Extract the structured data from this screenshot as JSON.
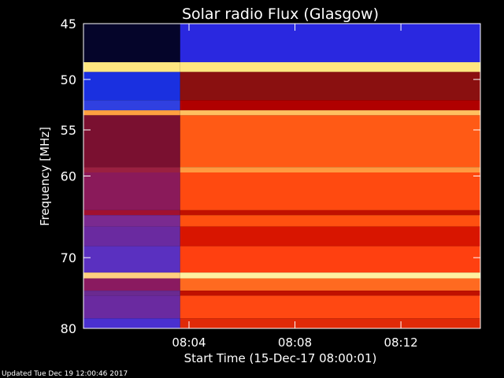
{
  "chart_data": {
    "type": "heatmap",
    "title": "Solar radio Flux (Glasgow)",
    "ylabel": "Frequency [MHz]",
    "xlabel": "Start Time (15-Dec-17 08:00:01)",
    "footer": "Updated Tue Dec 19 12:00:46 2017",
    "y_scale": "log",
    "ylim": [
      45,
      80
    ],
    "y_ticks": [
      45,
      50,
      55,
      60,
      70,
      80
    ],
    "y_tick_labels": [
      "45",
      "50",
      "55",
      "60",
      "70",
      "80"
    ],
    "x_start": "08:00:01",
    "x_end": "08:15:00",
    "x_ticks": [
      "08:04",
      "08:08",
      "08:12"
    ],
    "x_tick_labels": [
      "08:04",
      "08:08",
      "08:12"
    ],
    "transition_time": "08:03:40",
    "colors": {
      "background": "#000000",
      "pre_low_freq": "#2a2ad0",
      "pre_high_freq": "#6a2a8a",
      "post_main": "#ff4a10",
      "post_dark": "#b00000",
      "post_bright": "#ff8a30",
      "line_hot": "#fff5c0"
    },
    "bands": [
      {
        "range": [
          45.0,
          48.4
        ],
        "pre": "#05052a",
        "post": "#2a28e0"
      },
      {
        "range": [
          48.4,
          49.3
        ],
        "pre": "#ffe680",
        "post": "#ffe680"
      },
      {
        "range": [
          49.3,
          52.0
        ],
        "pre": "#1a30e0",
        "post": "#8a1010"
      },
      {
        "range": [
          52.0,
          53.0
        ],
        "pre": "#3040e0",
        "post": "#b00000"
      },
      {
        "range": [
          53.0,
          53.5
        ],
        "pre": "#ffa040",
        "post": "#ffc060"
      },
      {
        "range": [
          53.5,
          59.0
        ],
        "pre": "#7a1030",
        "post": "#ff5a15"
      },
      {
        "range": [
          59.0,
          59.6
        ],
        "pre": "#9a2040",
        "post": "#ff9a40"
      },
      {
        "range": [
          59.6,
          64.0
        ],
        "pre": "#8a1a5a",
        "post": "#ff4a10"
      },
      {
        "range": [
          64.0,
          64.6
        ],
        "pre": "#a01030",
        "post": "#c01000"
      },
      {
        "range": [
          64.6,
          66.0
        ],
        "pre": "#7a2a90",
        "post": "#ff5010"
      },
      {
        "range": [
          66.0,
          68.5
        ],
        "pre": "#6a2aa0",
        "post": "#d81500"
      },
      {
        "range": [
          68.5,
          72.0
        ],
        "pre": "#5a30c0",
        "post": "#ff4010"
      },
      {
        "range": [
          72.0,
          72.8
        ],
        "pre": "#ffd080",
        "post": "#fff0a0"
      },
      {
        "range": [
          72.8,
          74.5
        ],
        "pre": "#8a1a60",
        "post": "#ff6a20"
      },
      {
        "range": [
          74.5,
          75.2
        ],
        "pre": "#6a2a90",
        "post": "#c01000"
      },
      {
        "range": [
          75.2,
          78.5
        ],
        "pre": "#6a2aa0",
        "post": "#ff4812"
      },
      {
        "range": [
          78.5,
          80.0
        ],
        "pre": "#4a30d0",
        "post": "#e02a08"
      }
    ]
  }
}
